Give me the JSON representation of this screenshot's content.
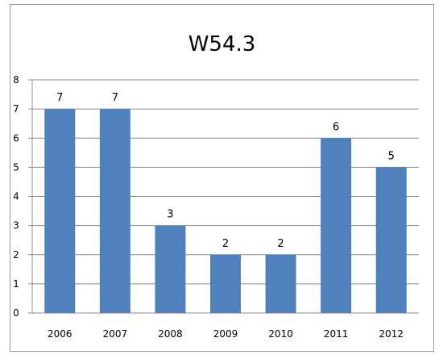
{
  "chart_data": {
    "type": "bar",
    "title": "W54.3",
    "xlabel": "",
    "ylabel": "",
    "categories": [
      "2006",
      "2007",
      "2008",
      "2009",
      "2010",
      "2011",
      "2012"
    ],
    "values": [
      7,
      7,
      3,
      2,
      2,
      6,
      5
    ],
    "data_labels": [
      "7",
      "7",
      "3",
      "2",
      "2",
      "6",
      "5"
    ],
    "ylim": [
      0,
      8
    ],
    "yticks": [
      "0",
      "1",
      "2",
      "3",
      "4",
      "5",
      "6",
      "7",
      "8"
    ],
    "grid": true,
    "legend": "none",
    "colors": {
      "bar": "#4f81bd",
      "grid": "#8c8c8c",
      "text": "#000000"
    }
  }
}
